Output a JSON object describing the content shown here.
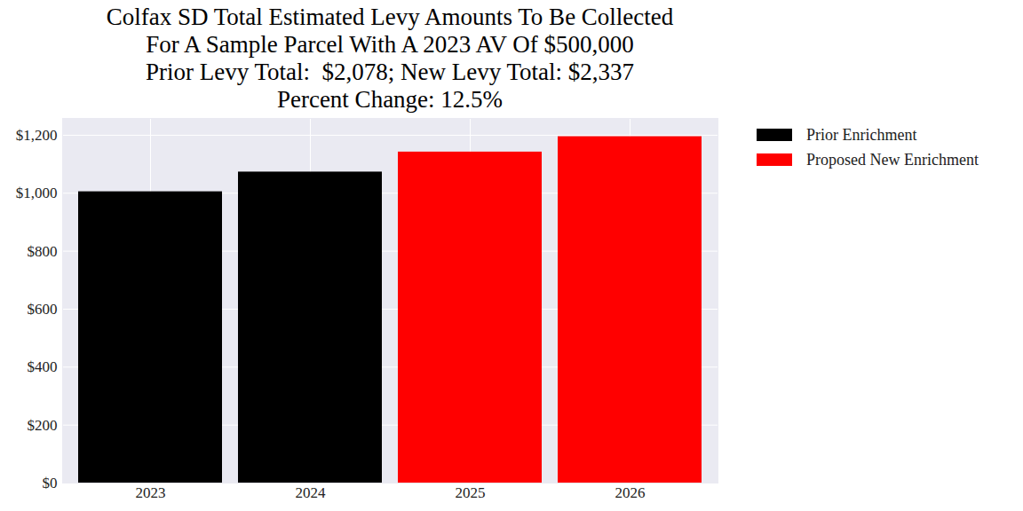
{
  "chart_data": {
    "type": "bar",
    "title": "Colfax SD Total Estimated Levy Amounts To Be Collected\nFor A Sample Parcel With A 2023 AV Of $500,000\nPrior Levy Total:  $2,078; New Levy Total: $2,337\nPercent Change: 12.5%",
    "categories": [
      "2023",
      "2024",
      "2025",
      "2026"
    ],
    "series": [
      {
        "name": "Prior Enrichment",
        "color": "#000000",
        "values": [
          1005,
          1073,
          null,
          null
        ]
      },
      {
        "name": "Proposed New Enrichment",
        "color": "#ff0000",
        "values": [
          null,
          null,
          1142,
          1195
        ]
      }
    ],
    "ylim": [
      0,
      1258
    ],
    "yticks": [
      {
        "value": 0,
        "label": "$0"
      },
      {
        "value": 200,
        "label": "$200"
      },
      {
        "value": 400,
        "label": "$400"
      },
      {
        "value": 600,
        "label": "$600"
      },
      {
        "value": 800,
        "label": "$800"
      },
      {
        "value": 1000,
        "label": "$1,000"
      },
      {
        "value": 1200,
        "label": "$1,200"
      }
    ],
    "grid": true,
    "legend": "right"
  }
}
